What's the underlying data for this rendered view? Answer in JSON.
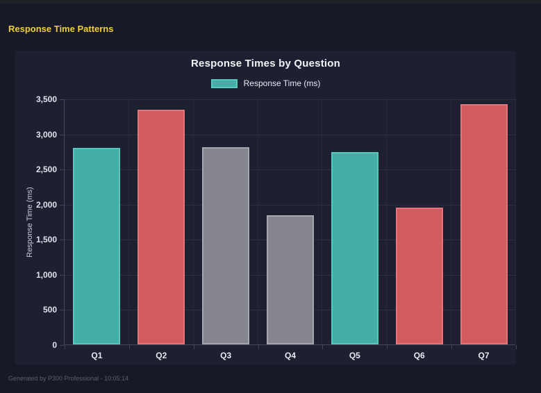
{
  "page": {
    "title": "Response Time Patterns"
  },
  "footer": {
    "text": "Generated by P300 Professional - 10:05:14"
  },
  "colors": {
    "page_bg": "#171a26",
    "topstrip_bg": "#212228",
    "panel_bg": "#1d2031",
    "accent_yellow": "#f0ce39",
    "grid_horizontal": "#2c3140",
    "grid_vertical": "#272b3a",
    "axis": "#434859",
    "tick_text": "#e0e3eb",
    "title_text": "#f2f4f8",
    "footer_text": "#5a5f6e",
    "teal": "#45ada6",
    "red": "#d05c60",
    "gray": "#85858d"
  },
  "chart_data": {
    "type": "bar",
    "title": "Response Times by Question",
    "xlabel": "",
    "ylabel": "Response Time (ms)",
    "legend_position": "top",
    "grid": true,
    "legend": [
      {
        "label": "Response Time (ms)",
        "fill": "#45ada6",
        "border": "#5bc8bf"
      }
    ],
    "categories": [
      "Q1",
      "Q2",
      "Q3",
      "Q4",
      "Q5",
      "Q6",
      "Q7"
    ],
    "series": [
      {
        "name": "Response Time (ms)",
        "values": [
          2800,
          3340,
          2810,
          1840,
          2740,
          1950,
          3420
        ]
      }
    ],
    "ylim": [
      0,
      3500
    ],
    "ytick_step": 500,
    "ytick_labels": [
      "0",
      "500",
      "1,000",
      "1,500",
      "2,000",
      "2,500",
      "3,000",
      "3,500"
    ],
    "bar_colors": [
      {
        "fill": "#45ada6",
        "border": "#5bc8bf"
      },
      {
        "fill": "#d05c60",
        "border": "#e8737a"
      },
      {
        "fill": "#85858d",
        "border": "#a6a6ae"
      },
      {
        "fill": "#85858d",
        "border": "#a6a6ae"
      },
      {
        "fill": "#45ada6",
        "border": "#5bc8bf"
      },
      {
        "fill": "#d05c60",
        "border": "#e8737a"
      },
      {
        "fill": "#d05c60",
        "border": "#e8737a"
      }
    ]
  }
}
